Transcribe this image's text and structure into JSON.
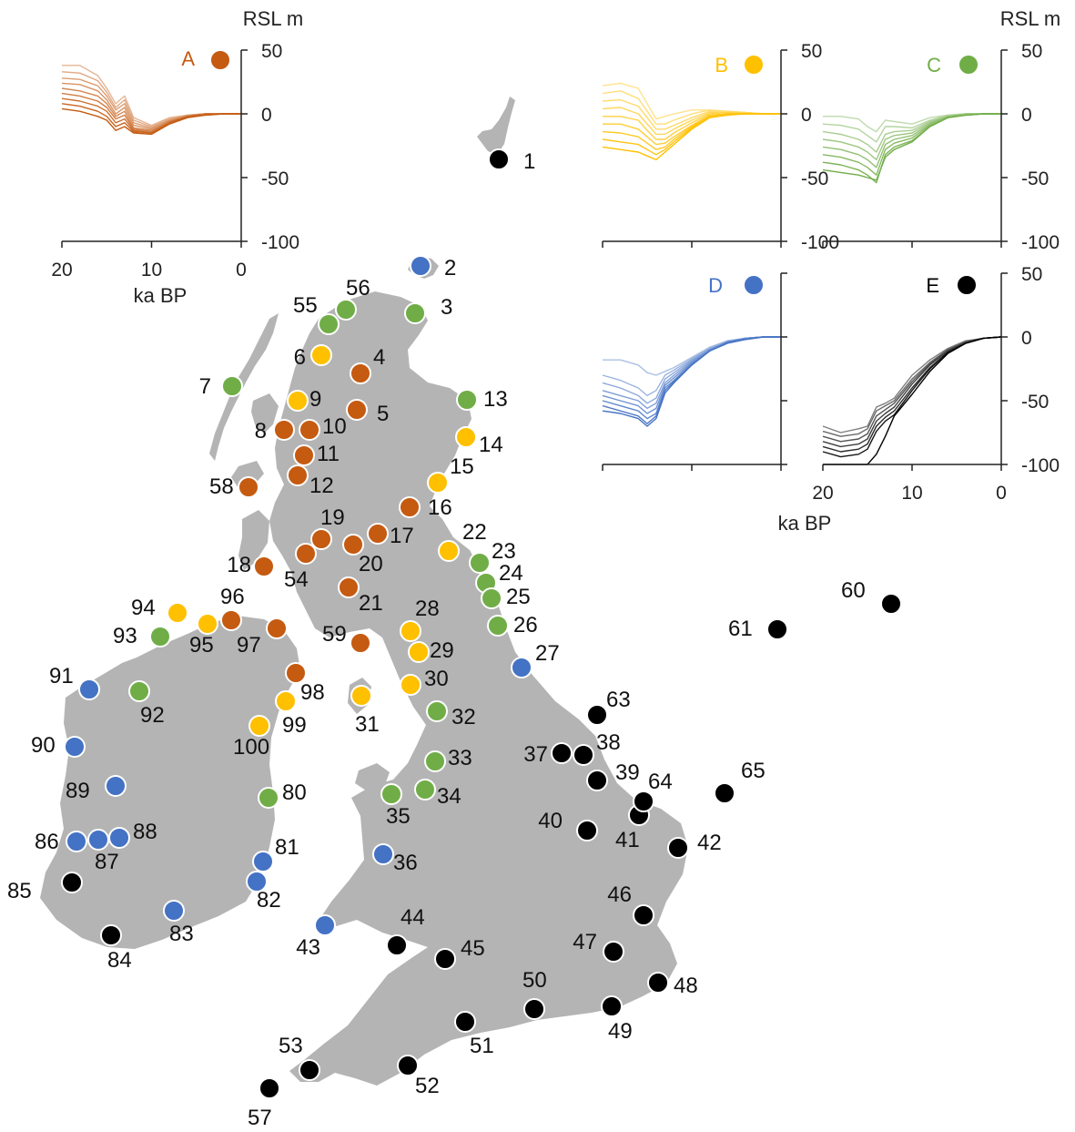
{
  "figure": {
    "left_unit_label": "RSL m",
    "right_unit_label": "RSL m",
    "left_xlabel": "ka BP",
    "right_xlabel": "ka BP"
  },
  "colors": {
    "A": "#C55A11",
    "B": "#FFC000",
    "C": "#70AD47",
    "D": "#4472C4",
    "E": "#000000",
    "land": "#b4b4b4"
  },
  "chart_data": [
    {
      "type": "line",
      "panel": "A",
      "label": "A",
      "color": "#C55A11",
      "x": [
        20,
        18,
        16,
        15,
        14,
        13,
        12,
        10,
        8,
        6,
        4,
        2,
        0
      ],
      "xlim": [
        20,
        0
      ],
      "ylim": [
        -100,
        50
      ],
      "xticks": [
        "20",
        "10",
        "0"
      ],
      "yticks": [
        "50",
        "0",
        "-50",
        "-100"
      ],
      "series": [
        {
          "values": [
            38,
            38,
            30,
            20,
            8,
            14,
            -3,
            -9,
            -3,
            -1,
            0,
            0,
            0
          ]
        },
        {
          "values": [
            33,
            32,
            26,
            17,
            5,
            11,
            -5,
            -10,
            -4,
            -1,
            0,
            0,
            0
          ]
        },
        {
          "values": [
            28,
            27,
            22,
            14,
            3,
            8,
            -7,
            -11,
            -5,
            -1,
            0,
            0,
            0
          ]
        },
        {
          "values": [
            24,
            23,
            18,
            11,
            0,
            5,
            -9,
            -12,
            -5,
            -2,
            0,
            0,
            0
          ]
        },
        {
          "values": [
            20,
            18,
            14,
            8,
            -2,
            2,
            -11,
            -13,
            -6,
            -2,
            0,
            0,
            0
          ]
        },
        {
          "values": [
            16,
            14,
            10,
            5,
            -4,
            -1,
            -12,
            -14,
            -6,
            -2,
            0,
            0,
            0
          ]
        },
        {
          "values": [
            12,
            10,
            6,
            2,
            -7,
            -4,
            -13,
            -15,
            -7,
            -2,
            0,
            0,
            0
          ]
        },
        {
          "values": [
            8,
            6,
            2,
            -2,
            -10,
            -7,
            -14,
            -15,
            -7,
            -2,
            -1,
            0,
            0
          ]
        },
        {
          "values": [
            4,
            2,
            -2,
            -5,
            -13,
            -10,
            -15,
            -16,
            -8,
            -3,
            -1,
            0,
            0
          ]
        }
      ]
    },
    {
      "type": "line",
      "panel": "B",
      "label": "B",
      "color": "#FFC000",
      "x": [
        20,
        18,
        16,
        15,
        14,
        13,
        12,
        10,
        8,
        6,
        4,
        2,
        0
      ],
      "xlim": [
        20,
        0
      ],
      "ylim": [
        -100,
        50
      ],
      "xticks": [],
      "yticks": [
        "50",
        "0",
        "-50",
        "-100"
      ],
      "series": [
        {
          "values": [
            22,
            24,
            20,
            8,
            -4,
            -2,
            0,
            3,
            3,
            2,
            1,
            0,
            0
          ]
        },
        {
          "values": [
            16,
            18,
            12,
            2,
            -8,
            -8,
            -5,
            0,
            3,
            2,
            1,
            0,
            0
          ]
        },
        {
          "values": [
            10,
            11,
            6,
            -3,
            -12,
            -12,
            -9,
            -3,
            2,
            2,
            1,
            0,
            0
          ]
        },
        {
          "values": [
            4,
            5,
            0,
            -8,
            -16,
            -16,
            -12,
            -5,
            1,
            1,
            1,
            0,
            0
          ]
        },
        {
          "values": [
            -2,
            -2,
            -5,
            -13,
            -20,
            -20,
            -15,
            -7,
            0,
            1,
            0,
            0,
            0
          ]
        },
        {
          "values": [
            -8,
            -8,
            -12,
            -18,
            -24,
            -23,
            -18,
            -9,
            -1,
            0,
            0,
            0,
            0
          ]
        },
        {
          "values": [
            -14,
            -15,
            -18,
            -23,
            -28,
            -26,
            -20,
            -10,
            -2,
            0,
            0,
            0,
            0
          ]
        },
        {
          "values": [
            -20,
            -22,
            -24,
            -28,
            -32,
            -28,
            -22,
            -11,
            -2,
            0,
            0,
            0,
            0
          ]
        },
        {
          "values": [
            -26,
            -28,
            -30,
            -33,
            -36,
            -30,
            -24,
            -12,
            -3,
            -1,
            0,
            0,
            0
          ]
        }
      ]
    },
    {
      "type": "line",
      "panel": "C",
      "label": "C",
      "color": "#70AD47",
      "x": [
        20,
        18,
        16,
        15,
        14,
        13,
        12,
        10,
        8,
        6,
        4,
        2,
        0
      ],
      "xlim": [
        20,
        0
      ],
      "ylim": [
        -100,
        50
      ],
      "xticks": [],
      "yticks": [
        "50",
        "0",
        "-50",
        "-100"
      ],
      "series": [
        {
          "values": [
            -2,
            -2,
            -4,
            -10,
            -14,
            -5,
            -6,
            -8,
            -3,
            -1,
            0,
            0,
            0
          ]
        },
        {
          "values": [
            -8,
            -9,
            -12,
            -17,
            -22,
            -10,
            -10,
            -11,
            -5,
            -1,
            0,
            0,
            0
          ]
        },
        {
          "values": [
            -14,
            -16,
            -20,
            -24,
            -30,
            -16,
            -14,
            -13,
            -6,
            -2,
            0,
            0,
            0
          ]
        },
        {
          "values": [
            -20,
            -22,
            -26,
            -30,
            -36,
            -20,
            -17,
            -15,
            -7,
            -2,
            0,
            0,
            0
          ]
        },
        {
          "values": [
            -26,
            -28,
            -32,
            -36,
            -42,
            -24,
            -20,
            -17,
            -8,
            -2,
            -1,
            0,
            0
          ]
        },
        {
          "values": [
            -32,
            -34,
            -38,
            -42,
            -48,
            -28,
            -23,
            -19,
            -9,
            -3,
            -1,
            0,
            0
          ]
        },
        {
          "values": [
            -38,
            -40,
            -44,
            -48,
            -54,
            -32,
            -26,
            -21,
            -10,
            -3,
            -1,
            0,
            0
          ]
        },
        {
          "values": [
            -44,
            -46,
            -48,
            -50,
            -52,
            -34,
            -28,
            -22,
            -10,
            -3,
            -1,
            0,
            0
          ]
        }
      ]
    },
    {
      "type": "line",
      "panel": "D",
      "label": "D",
      "color": "#4472C4",
      "x": [
        20,
        18,
        16,
        15,
        14,
        13,
        12,
        10,
        8,
        6,
        4,
        2,
        0
      ],
      "xlim": [
        20,
        0
      ],
      "ylim": [
        -100,
        50
      ],
      "xticks": [],
      "yticks": [],
      "series": [
        {
          "values": [
            -18,
            -18,
            -22,
            -28,
            -30,
            -27,
            -24,
            -16,
            -8,
            -3,
            -1,
            0,
            0
          ]
        },
        {
          "values": [
            -30,
            -34,
            -40,
            -46,
            -42,
            -30,
            -26,
            -17,
            -9,
            -3,
            -1,
            0,
            0
          ]
        },
        {
          "values": [
            -36,
            -40,
            -46,
            -52,
            -48,
            -33,
            -28,
            -18,
            -9,
            -4,
            -1,
            0,
            0
          ]
        },
        {
          "values": [
            -42,
            -46,
            -50,
            -56,
            -52,
            -36,
            -30,
            -19,
            -10,
            -4,
            -1,
            0,
            0
          ]
        },
        {
          "values": [
            -46,
            -50,
            -54,
            -60,
            -56,
            -38,
            -32,
            -20,
            -10,
            -4,
            -1,
            0,
            0
          ]
        },
        {
          "values": [
            -50,
            -54,
            -58,
            -64,
            -60,
            -40,
            -34,
            -21,
            -11,
            -4,
            -1,
            0,
            0
          ]
        },
        {
          "values": [
            -54,
            -58,
            -62,
            -68,
            -62,
            -42,
            -35,
            -22,
            -11,
            -4,
            -2,
            0,
            0
          ]
        },
        {
          "values": [
            -58,
            -60,
            -64,
            -70,
            -64,
            -44,
            -36,
            -22,
            -11,
            -5,
            -2,
            0,
            0
          ]
        }
      ]
    },
    {
      "type": "line",
      "panel": "E",
      "label": "E",
      "color": "#000000",
      "x": [
        20,
        18,
        16,
        15,
        14,
        13,
        12,
        10,
        8,
        6,
        4,
        2,
        0
      ],
      "xlim": [
        20,
        0
      ],
      "ylim": [
        -100,
        50
      ],
      "xticks": [
        "20",
        "10",
        "0"
      ],
      "yticks": [
        "50",
        "0",
        "-50",
        "-100"
      ],
      "series": [
        {
          "values": [
            -70,
            -75,
            -72,
            -70,
            -55,
            -52,
            -48,
            -30,
            -18,
            -9,
            -3,
            -1,
            0
          ]
        },
        {
          "values": [
            -74,
            -78,
            -76,
            -72,
            -58,
            -54,
            -50,
            -33,
            -20,
            -10,
            -4,
            -1,
            0
          ]
        },
        {
          "values": [
            -78,
            -82,
            -80,
            -76,
            -62,
            -57,
            -52,
            -35,
            -21,
            -10,
            -4,
            -1,
            0
          ]
        },
        {
          "values": [
            -82,
            -86,
            -84,
            -80,
            -66,
            -60,
            -55,
            -37,
            -22,
            -11,
            -4,
            -1,
            0
          ]
        },
        {
          "values": [
            -86,
            -90,
            -88,
            -84,
            -70,
            -63,
            -58,
            -40,
            -24,
            -12,
            -5,
            -1,
            0
          ]
        },
        {
          "values": [
            -90,
            -94,
            -92,
            -88,
            -74,
            -66,
            -61,
            -42,
            -25,
            -12,
            -5,
            -1,
            0
          ]
        },
        {
          "values": [
            -100,
            -100,
            -100,
            -100,
            -92,
            -78,
            -62,
            -45,
            -27,
            -13,
            -5,
            -1,
            0
          ]
        }
      ]
    }
  ],
  "sites": [
    {
      "id": "1",
      "group": "E"
    },
    {
      "id": "2",
      "group": "D"
    },
    {
      "id": "3",
      "group": "C"
    },
    {
      "id": "4",
      "group": "A"
    },
    {
      "id": "5",
      "group": "A"
    },
    {
      "id": "6",
      "group": "B"
    },
    {
      "id": "7",
      "group": "C"
    },
    {
      "id": "8",
      "group": "A"
    },
    {
      "id": "9",
      "group": "B"
    },
    {
      "id": "10",
      "group": "A"
    },
    {
      "id": "11",
      "group": "A"
    },
    {
      "id": "12",
      "group": "A"
    },
    {
      "id": "13",
      "group": "C"
    },
    {
      "id": "14",
      "group": "B"
    },
    {
      "id": "15",
      "group": "B"
    },
    {
      "id": "16",
      "group": "A"
    },
    {
      "id": "17",
      "group": "A"
    },
    {
      "id": "18",
      "group": "A"
    },
    {
      "id": "19",
      "group": "A"
    },
    {
      "id": "20",
      "group": "A"
    },
    {
      "id": "21",
      "group": "A"
    },
    {
      "id": "22",
      "group": "B"
    },
    {
      "id": "23",
      "group": "C"
    },
    {
      "id": "24",
      "group": "C"
    },
    {
      "id": "25",
      "group": "C"
    },
    {
      "id": "26",
      "group": "C"
    },
    {
      "id": "27",
      "group": "D"
    },
    {
      "id": "28",
      "group": "B"
    },
    {
      "id": "29",
      "group": "B"
    },
    {
      "id": "30",
      "group": "B"
    },
    {
      "id": "31",
      "group": "B"
    },
    {
      "id": "32",
      "group": "C"
    },
    {
      "id": "33",
      "group": "C"
    },
    {
      "id": "34",
      "group": "C"
    },
    {
      "id": "35",
      "group": "C"
    },
    {
      "id": "36",
      "group": "D"
    },
    {
      "id": "37",
      "group": "E"
    },
    {
      "id": "38",
      "group": "E"
    },
    {
      "id": "39",
      "group": "E"
    },
    {
      "id": "40",
      "group": "E"
    },
    {
      "id": "41",
      "group": "E"
    },
    {
      "id": "42",
      "group": "E"
    },
    {
      "id": "43",
      "group": "D"
    },
    {
      "id": "44",
      "group": "E"
    },
    {
      "id": "45",
      "group": "E"
    },
    {
      "id": "46",
      "group": "E"
    },
    {
      "id": "47",
      "group": "E"
    },
    {
      "id": "48",
      "group": "E"
    },
    {
      "id": "49",
      "group": "E"
    },
    {
      "id": "50",
      "group": "E"
    },
    {
      "id": "51",
      "group": "E"
    },
    {
      "id": "52",
      "group": "E"
    },
    {
      "id": "53",
      "group": "E"
    },
    {
      "id": "54",
      "group": "A"
    },
    {
      "id": "55",
      "group": "C"
    },
    {
      "id": "56",
      "group": "C"
    },
    {
      "id": "57",
      "group": "E"
    },
    {
      "id": "58",
      "group": "A"
    },
    {
      "id": "59",
      "group": "A"
    },
    {
      "id": "60",
      "group": "E"
    },
    {
      "id": "61",
      "group": "E"
    },
    {
      "id": "63",
      "group": "E"
    },
    {
      "id": "64",
      "group": "E"
    },
    {
      "id": "65",
      "group": "E"
    },
    {
      "id": "80",
      "group": "C"
    },
    {
      "id": "81",
      "group": "D"
    },
    {
      "id": "82",
      "group": "D"
    },
    {
      "id": "83",
      "group": "D"
    },
    {
      "id": "84",
      "group": "E"
    },
    {
      "id": "85",
      "group": "E"
    },
    {
      "id": "86",
      "group": "D"
    },
    {
      "id": "87",
      "group": "D"
    },
    {
      "id": "88",
      "group": "D"
    },
    {
      "id": "89",
      "group": "D"
    },
    {
      "id": "90",
      "group": "D"
    },
    {
      "id": "91",
      "group": "D"
    },
    {
      "id": "92",
      "group": "C"
    },
    {
      "id": "93",
      "group": "C"
    },
    {
      "id": "94",
      "group": "B"
    },
    {
      "id": "95",
      "group": "B"
    },
    {
      "id": "96",
      "group": "A"
    },
    {
      "id": "97",
      "group": "A"
    },
    {
      "id": "98",
      "group": "A"
    },
    {
      "id": "99",
      "group": "B"
    },
    {
      "id": "100",
      "group": "B"
    }
  ]
}
